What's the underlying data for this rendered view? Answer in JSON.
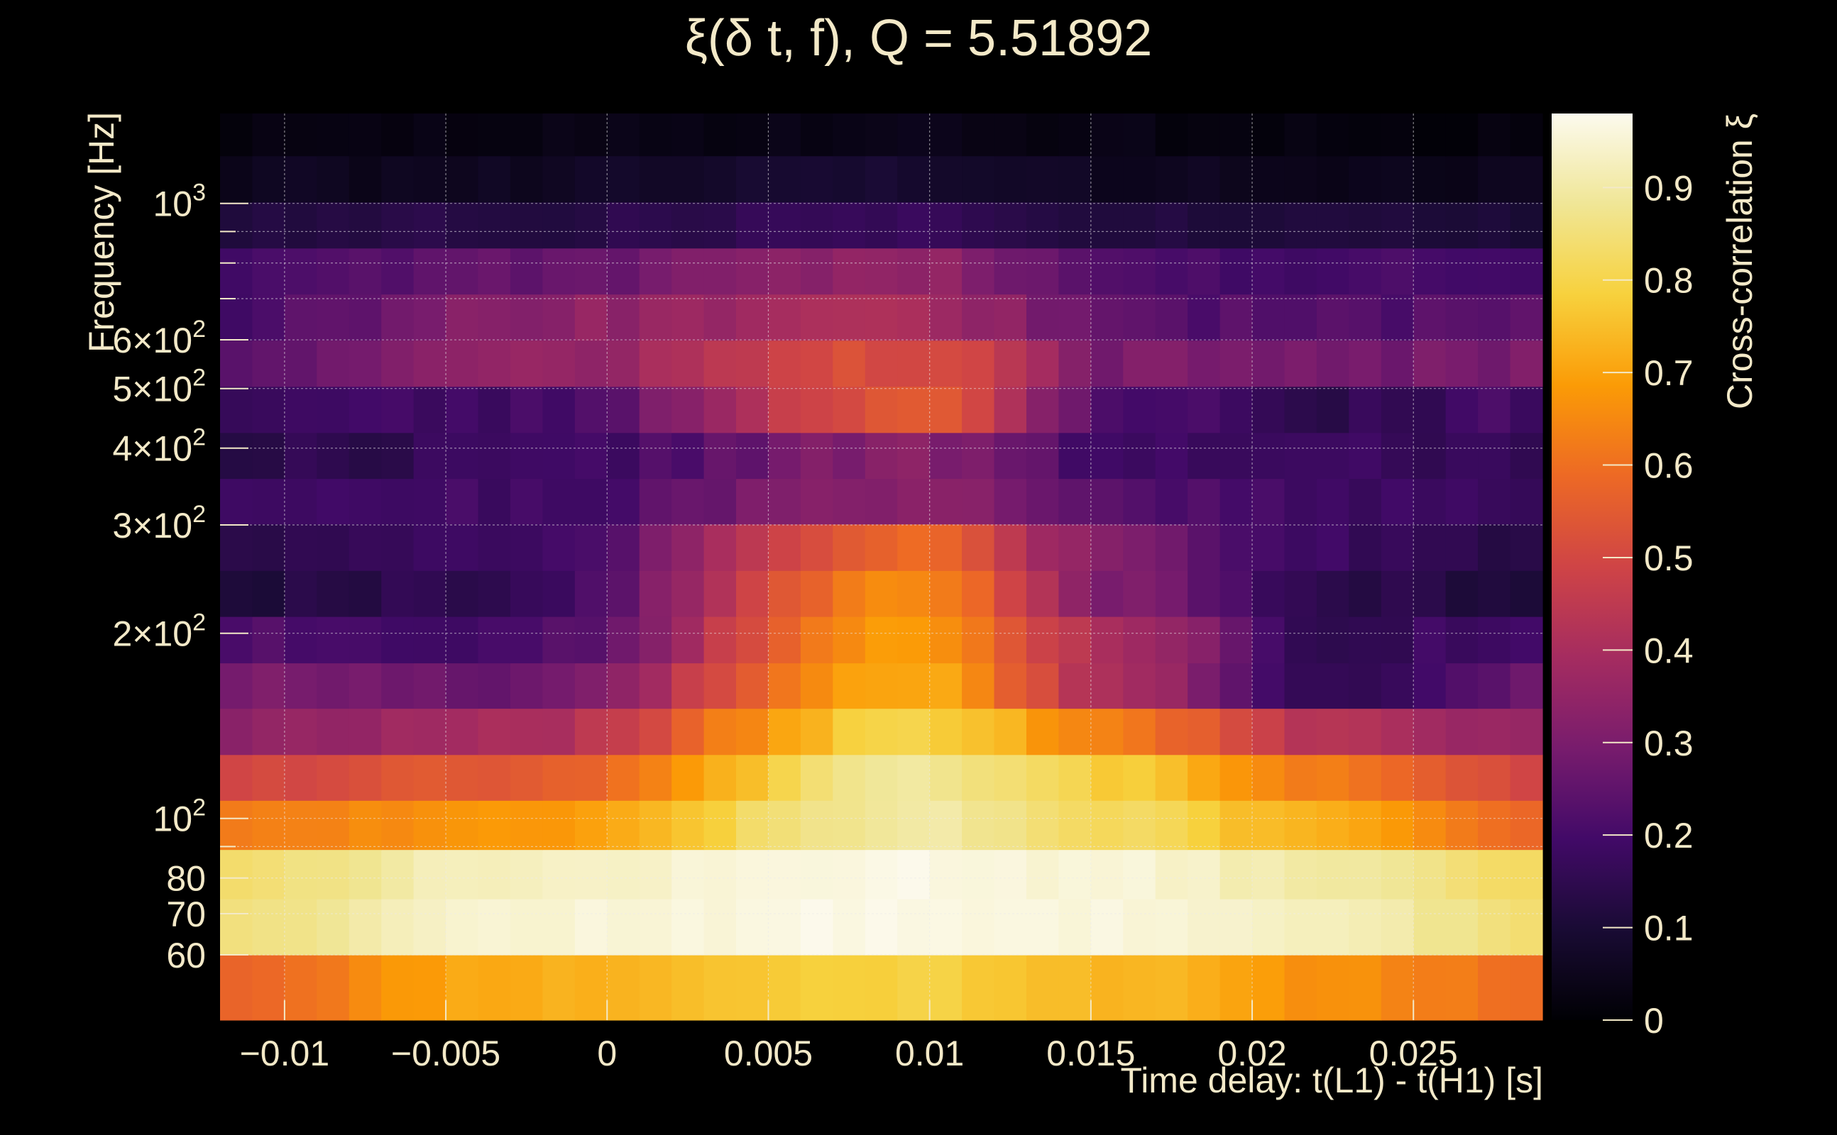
{
  "chart_data": {
    "type": "heatmap",
    "title": "ξ(δ t, f), Q = 5.51892",
    "xlabel": "Time delay: t(L1) - t(H1) [s]",
    "ylabel": "Frequency [Hz]",
    "colorbar_label": "Cross-correlation ξ",
    "xlim": [
      -0.012,
      0.029
    ],
    "ylim": [
      47,
      1400
    ],
    "yscale": "log",
    "zlim": [
      0,
      0.98
    ],
    "grid": true,
    "colormap": "inferno",
    "x_ticks": [
      {
        "value": -0.01,
        "label": "−0.01"
      },
      {
        "value": -0.005,
        "label": "−0.005"
      },
      {
        "value": 0,
        "label": "0"
      },
      {
        "value": 0.005,
        "label": "0.005"
      },
      {
        "value": 0.01,
        "label": "0.01"
      },
      {
        "value": 0.015,
        "label": "0.015"
      },
      {
        "value": 0.02,
        "label": "0.02"
      },
      {
        "value": 0.025,
        "label": "0.025"
      }
    ],
    "y_ticks": [
      {
        "value": 60,
        "base": "60",
        "exp": ""
      },
      {
        "value": 70,
        "base": "70",
        "exp": ""
      },
      {
        "value": 80,
        "base": "80",
        "exp": ""
      },
      {
        "value": 100,
        "base": "10",
        "exp": "2"
      },
      {
        "value": 200,
        "base": "2×10",
        "exp": "2"
      },
      {
        "value": 300,
        "base": "3×10",
        "exp": "2"
      },
      {
        "value": 400,
        "base": "4×10",
        "exp": "2"
      },
      {
        "value": 500,
        "base": "5×10",
        "exp": "2"
      },
      {
        "value": 600,
        "base": "6×10",
        "exp": "2"
      },
      {
        "value": 1000,
        "base": "10",
        "exp": "3"
      }
    ],
    "colorbar_ticks": [
      0,
      0.1,
      0.2,
      0.3,
      0.4,
      0.5,
      0.6,
      0.7,
      0.8,
      0.9
    ],
    "colorbar_tick_labels": [
      "0",
      "0.1",
      "0.2",
      "0.3",
      "0.4",
      "0.5",
      "0.6",
      "0.7",
      "0.8",
      "0.9"
    ],
    "rows": [
      {
        "f_low": 47,
        "f_high": 60,
        "profile": [
          0.58,
          0.72,
          0.79,
          0.74,
          0.67,
          0.6
        ],
        "noise": 0.012,
        "seed": 11
      },
      {
        "f_low": 60,
        "f_high": 74,
        "profile": [
          0.86,
          0.95,
          0.97,
          0.96,
          0.92,
          0.85
        ],
        "noise": 0.01,
        "seed": 12
      },
      {
        "f_low": 74,
        "f_high": 89,
        "profile": [
          0.84,
          0.93,
          0.97,
          0.95,
          0.9,
          0.82
        ],
        "noise": 0.01,
        "seed": 13
      },
      {
        "f_low": 89,
        "f_high": 107,
        "profile": [
          0.63,
          0.68,
          0.9,
          0.82,
          0.72,
          0.58
        ],
        "noise": 0.015,
        "seed": 14
      },
      {
        "f_low": 107,
        "f_high": 127,
        "profile": [
          0.5,
          0.55,
          0.88,
          0.78,
          0.62,
          0.5
        ],
        "noise": 0.015,
        "seed": 15
      },
      {
        "f_low": 127,
        "f_high": 151,
        "profile": [
          0.34,
          0.4,
          0.8,
          0.62,
          0.44,
          0.34
        ],
        "noise": 0.02,
        "seed": 16
      },
      {
        "f_low": 151,
        "f_high": 179,
        "profile": [
          0.3,
          0.27,
          0.72,
          0.4,
          0.15,
          0.27
        ],
        "noise": 0.02,
        "seed": 17
      },
      {
        "f_low": 179,
        "f_high": 213,
        "profile": [
          0.22,
          0.2,
          0.68,
          0.4,
          0.16,
          0.2
        ],
        "noise": 0.02,
        "seed": 18
      },
      {
        "f_low": 213,
        "f_high": 253,
        "profile": [
          0.12,
          0.16,
          0.66,
          0.3,
          0.14,
          0.12
        ],
        "noise": 0.02,
        "seed": 19
      },
      {
        "f_low": 253,
        "f_high": 301,
        "profile": [
          0.15,
          0.17,
          0.58,
          0.3,
          0.18,
          0.12
        ],
        "noise": 0.02,
        "seed": 20
      },
      {
        "f_low": 301,
        "f_high": 357,
        "profile": [
          0.2,
          0.19,
          0.34,
          0.23,
          0.2,
          0.16
        ],
        "noise": 0.025,
        "seed": 21
      },
      {
        "f_low": 357,
        "f_high": 424,
        "profile": [
          0.14,
          0.17,
          0.32,
          0.19,
          0.17,
          0.16
        ],
        "noise": 0.025,
        "seed": 22
      },
      {
        "f_low": 424,
        "f_high": 504,
        "profile": [
          0.18,
          0.19,
          0.55,
          0.22,
          0.15,
          0.2
        ],
        "noise": 0.025,
        "seed": 23
      },
      {
        "f_low": 504,
        "f_high": 599,
        "profile": [
          0.25,
          0.34,
          0.52,
          0.3,
          0.28,
          0.3
        ],
        "noise": 0.025,
        "seed": 24
      },
      {
        "f_low": 599,
        "f_high": 712,
        "profile": [
          0.2,
          0.34,
          0.4,
          0.24,
          0.22,
          0.25
        ],
        "noise": 0.025,
        "seed": 25
      },
      {
        "f_low": 712,
        "f_high": 846,
        "profile": [
          0.2,
          0.26,
          0.35,
          0.22,
          0.2,
          0.2
        ],
        "noise": 0.02,
        "seed": 26
      },
      {
        "f_low": 846,
        "f_high": 1005,
        "profile": [
          0.12,
          0.13,
          0.17,
          0.12,
          0.11,
          0.11
        ],
        "noise": 0.015,
        "seed": 27
      },
      {
        "f_low": 1005,
        "f_high": 1195,
        "profile": [
          0.05,
          0.06,
          0.09,
          0.06,
          0.05,
          0.05
        ],
        "noise": 0.015,
        "seed": 28
      },
      {
        "f_low": 1195,
        "f_high": 1400,
        "profile": [
          0.02,
          0.03,
          0.04,
          0.03,
          0.02,
          0.02
        ],
        "noise": 0.012,
        "seed": 29
      }
    ],
    "profile_x": [
      -0.012,
      -0.003,
      0.0095,
      0.016,
      0.022,
      0.029
    ],
    "columns": 41
  }
}
